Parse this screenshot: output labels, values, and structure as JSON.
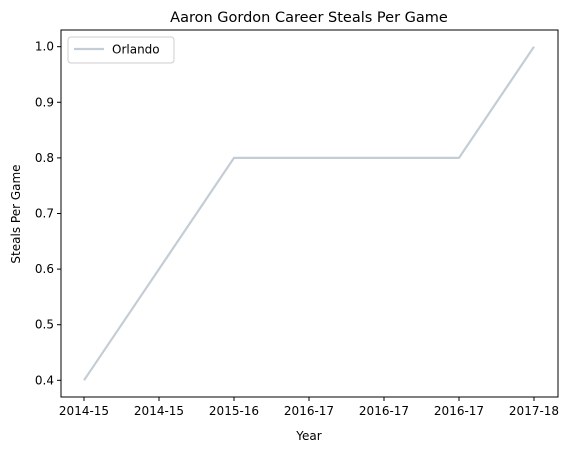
{
  "chart_data": {
    "type": "line",
    "title": "Aaron Gordon Career Steals Per Game",
    "xlabel": "Year",
    "ylabel": "Steals Per Game",
    "x_tick_labels": [
      "2014-15",
      "2014-15",
      "2015-16",
      "2016-17",
      "2016-17",
      "2016-17",
      "2017-18"
    ],
    "y_ticks": [
      0.4,
      0.5,
      0.6,
      0.7,
      0.8,
      0.9,
      1.0
    ],
    "y_tick_labels": [
      "0.4",
      "0.5",
      "0.6",
      "0.7",
      "0.8",
      "0.9",
      "1.0"
    ],
    "ylim": [
      0.37,
      1.03
    ],
    "grid": false,
    "legend_position": "top-left",
    "series": [
      {
        "name": "Orlando",
        "color": "#c4cdd5",
        "points": [
          {
            "x": "2014-15",
            "y": 0.4
          },
          {
            "x": "2015-16",
            "y": 0.8
          },
          {
            "x": "2016-17",
            "y": 0.8
          },
          {
            "x": "2017-18",
            "y": 1.0
          }
        ]
      }
    ]
  }
}
